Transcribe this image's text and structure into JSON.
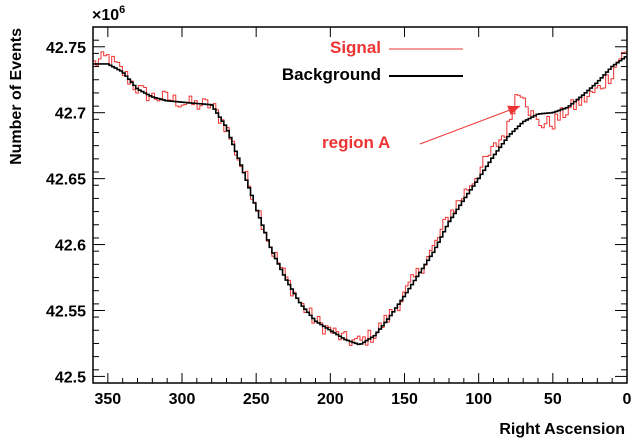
{
  "chart_data": {
    "type": "line",
    "title": "",
    "xlabel": "Right Ascension",
    "ylabel": "Number of Events",
    "y_scale_label": "×10",
    "y_scale_exponent": "6",
    "xlim": [
      360,
      0
    ],
    "ylim": [
      42.495,
      42.765
    ],
    "x_axis_reversed": true,
    "x_ticks": [
      350,
      300,
      250,
      200,
      150,
      100,
      50,
      0
    ],
    "y_ticks": [
      42.5,
      42.55,
      42.6,
      42.65,
      42.7,
      42.75
    ],
    "y_tick_labels": [
      "42.5",
      "42.55",
      "42.6",
      "42.65",
      "42.7",
      "42.75"
    ],
    "grid": false,
    "legend_placement": "top-center",
    "series": [
      {
        "name": "Signal",
        "style": "histogram",
        "color": "#ee3333",
        "noisy": true,
        "x": [
          360,
          350,
          340,
          330,
          320,
          310,
          300,
          290,
          280,
          270,
          260,
          250,
          240,
          230,
          220,
          210,
          200,
          190,
          180,
          170,
          160,
          150,
          140,
          130,
          120,
          110,
          100,
          90,
          80,
          75,
          70,
          65,
          60,
          50,
          40,
          30,
          20,
          10,
          5,
          0
        ],
        "values": [
          42.737,
          42.742,
          42.731,
          42.718,
          42.712,
          42.711,
          42.708,
          42.706,
          42.706,
          42.689,
          42.66,
          42.632,
          42.598,
          42.575,
          42.555,
          42.542,
          42.535,
          42.528,
          42.526,
          42.532,
          42.546,
          42.562,
          42.58,
          42.598,
          42.622,
          42.638,
          42.655,
          42.672,
          42.689,
          42.712,
          42.718,
          42.7,
          42.692,
          42.692,
          42.702,
          42.709,
          42.717,
          42.73,
          42.742,
          42.745
        ]
      },
      {
        "name": "Background",
        "style": "histogram",
        "color": "#000000",
        "x": [
          360,
          350,
          340,
          330,
          320,
          310,
          300,
          290,
          280,
          270,
          260,
          250,
          240,
          230,
          220,
          210,
          200,
          190,
          180,
          170,
          160,
          150,
          140,
          130,
          120,
          110,
          100,
          90,
          80,
          70,
          60,
          50,
          40,
          30,
          20,
          10,
          0
        ],
        "values": [
          42.737,
          42.737,
          42.731,
          42.718,
          42.712,
          42.709,
          42.708,
          42.707,
          42.706,
          42.689,
          42.66,
          42.628,
          42.597,
          42.574,
          42.555,
          42.542,
          42.535,
          42.528,
          42.524,
          42.531,
          42.545,
          42.561,
          42.578,
          42.595,
          42.617,
          42.634,
          42.65,
          42.667,
          42.682,
          42.693,
          42.699,
          42.7,
          42.704,
          42.713,
          42.723,
          42.735,
          42.743
        ]
      }
    ],
    "annotations": [
      {
        "text": "region A",
        "x": 72,
        "y": 42.705,
        "color": "#ee3333",
        "arrow": true
      }
    ]
  }
}
